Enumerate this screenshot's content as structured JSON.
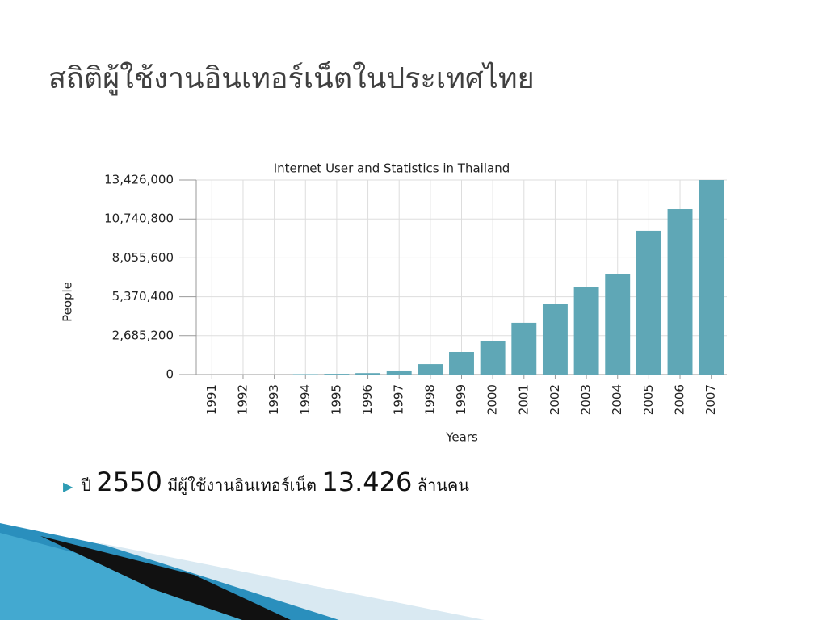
{
  "slide": {
    "title": "สถิติผู้ใช้งานอินเทอร์เน็ตในประเทศไทย",
    "bullet": [
      "ปี",
      "2550",
      "มีผู้ใช้งานอินเทอร์เน็ต",
      "13.426",
      "ล้านคน"
    ]
  },
  "chart_data": {
    "type": "bar",
    "title": "Internet User and Statistics in Thailand",
    "x_label": "Years",
    "y_label": "People",
    "categories": [
      "1991",
      "1992",
      "1993",
      "1994",
      "1995",
      "1996",
      "1997",
      "1998",
      "1999",
      "2000",
      "2001",
      "2002",
      "2003",
      "2004",
      "2005",
      "2006",
      "2007"
    ],
    "values": [
      0,
      0,
      0,
      30000,
      50000,
      100000,
      280000,
      720000,
      1560000,
      2340000,
      3570000,
      4850000,
      6020000,
      6960000,
      9920000,
      11420000,
      13426000
    ],
    "color": "#5fa7b6",
    "ylim": [
      0,
      13426000
    ],
    "yticks": [
      0,
      {
        "value": 2685200,
        "label": "2,685,200"
      },
      {
        "value": 5370400,
        "label": "5,370,400"
      },
      {
        "value": 8055600,
        "label": "8,055,600"
      },
      {
        "value": 10740800,
        "label": "10,740,800"
      },
      {
        "value": 13426000,
        "label": "13,426,000"
      }
    ],
    "grid": true
  }
}
